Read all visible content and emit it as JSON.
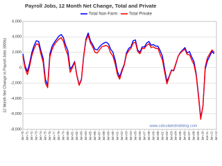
{
  "chart_data": {
    "type": "line",
    "title": "Payroll Jobs, 12 Month Net Change, Total and Private",
    "y_label": "12 Month Net Change in Payroll Jobs (000s)",
    "watermark": "www.calculatedriskblog.com",
    "grid": true,
    "legend": "top",
    "xlim": [
      1970,
      2013
    ],
    "ylim": [
      -8000,
      6000
    ],
    "yticks": [
      {
        "value": -8000,
        "label": "-8,000"
      },
      {
        "value": -6000,
        "label": "-6,000"
      },
      {
        "value": -4000,
        "label": "-4,000"
      },
      {
        "value": -2000,
        "label": "-2,000"
      },
      0,
      {
        "value": 2000,
        "label": "2,000"
      },
      {
        "value": 4000,
        "label": "4,000"
      },
      {
        "value": 6000,
        "label": "6,000"
      }
    ],
    "xticks": [
      {
        "value": 1970,
        "label": "Jan-70"
      },
      {
        "value": 1971,
        "label": "Jan-71"
      },
      {
        "value": 1972,
        "label": "Jan-72"
      },
      {
        "value": 1973,
        "label": "Jan-73"
      },
      {
        "value": 1974,
        "label": "Jan-74"
      },
      {
        "value": 1975,
        "label": "Jan-75"
      },
      {
        "value": 1976,
        "label": "Jan-76"
      },
      {
        "value": 1977,
        "label": "Jan-77"
      },
      {
        "value": 1978,
        "label": "Jan-78"
      },
      {
        "value": 1979,
        "label": "Jan-79"
      },
      {
        "value": 1980,
        "label": "Jan-80"
      },
      {
        "value": 1981,
        "label": "Jan-81"
      },
      {
        "value": 1982,
        "label": "Jan-82"
      },
      {
        "value": 1983,
        "label": "Jan-83"
      },
      {
        "value": 1984,
        "label": "Jan-84"
      },
      {
        "value": 1985,
        "label": "Jan-85"
      },
      {
        "value": 1986,
        "label": "Jan-86"
      },
      {
        "value": 1987,
        "label": "Jan-87"
      },
      {
        "value": 1988,
        "label": "Jan-88"
      },
      {
        "value": 1989,
        "label": "Jan-89"
      },
      {
        "value": 1990,
        "label": "Jan-90"
      },
      {
        "value": 1991,
        "label": "Jan-91"
      },
      {
        "value": 1992,
        "label": "Jan-92"
      },
      {
        "value": 1993,
        "label": "Jan-93"
      },
      {
        "value": 1994,
        "label": "Jan-94"
      },
      {
        "value": 1995,
        "label": "Jan-95"
      },
      {
        "value": 1996,
        "label": "Jan-96"
      },
      {
        "value": 1997,
        "label": "Jan-97"
      },
      {
        "value": 1998,
        "label": "Jan-98"
      },
      {
        "value": 1999,
        "label": "Jan-99"
      },
      {
        "value": 2000,
        "label": "Jan-00"
      },
      {
        "value": 2001,
        "label": "Jan-01"
      },
      {
        "value": 2002,
        "label": "Jan-02"
      },
      {
        "value": 2003,
        "label": "Jan-03"
      },
      {
        "value": 2004,
        "label": "Jan-04"
      },
      {
        "value": 2005,
        "label": "Jan-05"
      },
      {
        "value": 2006,
        "label": "Jan-06"
      },
      {
        "value": 2007,
        "label": "Jan-07"
      },
      {
        "value": 2008,
        "label": "Jan-08"
      },
      {
        "value": 2009,
        "label": "Jan-09"
      },
      {
        "value": 2010,
        "label": "Jan-10"
      },
      {
        "value": 2011,
        "label": "Jan-11"
      },
      {
        "value": 2012,
        "label": "Jan-12"
      },
      {
        "value": 2013,
        "label": "Jan-13"
      }
    ],
    "x": [
      1970,
      1970.5,
      1971,
      1971.5,
      1972,
      1972.5,
      1973,
      1973.5,
      1974,
      1974.5,
      1975,
      1975.5,
      1976,
      1976.5,
      1977,
      1977.5,
      1978,
      1978.5,
      1979,
      1979.5,
      1980,
      1980.5,
      1981,
      1981.5,
      1982,
      1982.5,
      1983,
      1983.5,
      1984,
      1984.5,
      1985,
      1985.5,
      1986,
      1986.5,
      1987,
      1987.5,
      1988,
      1988.5,
      1989,
      1989.5,
      1990,
      1990.5,
      1991,
      1991.5,
      1992,
      1992.5,
      1993,
      1993.5,
      1994,
      1994.5,
      1995,
      1995.5,
      1996,
      1996.5,
      1997,
      1997.5,
      1998,
      1998.5,
      1999,
      1999.5,
      2000,
      2000.5,
      2001,
      2001.5,
      2002,
      2002.5,
      2003,
      2003.5,
      2004,
      2004.5,
      2005,
      2005.5,
      2006,
      2006.5,
      2007,
      2007.5,
      2008,
      2008.5,
      2009,
      2009.5,
      2010,
      2010.5,
      2011,
      2011.5,
      2012,
      2012.5
    ],
    "series": [
      {
        "name": "Total Non-Farm",
        "color": "#0000ff",
        "values": [
          1800,
          200,
          -500,
          600,
          2000,
          2900,
          3500,
          3400,
          2200,
          1200,
          -1500,
          -2300,
          1800,
          2800,
          3300,
          3700,
          4100,
          4300,
          3900,
          2900,
          2200,
          -200,
          200,
          800,
          -1000,
          -2200,
          -1500,
          1500,
          3700,
          4500,
          3500,
          3000,
          2400,
          2300,
          2700,
          3000,
          3200,
          3300,
          3100,
          2400,
          2000,
          1000,
          -500,
          -1200,
          -300,
          400,
          1900,
          2500,
          2700,
          3500,
          3600,
          2300,
          2000,
          2700,
          2700,
          3200,
          3400,
          2900,
          3000,
          2800,
          2800,
          2200,
          1500,
          -200,
          -1800,
          -1100,
          -300,
          -400,
          500,
          1500,
          2000,
          2300,
          2600,
          1900,
          2100,
          1400,
          800,
          -800,
          -3500,
          -6500,
          -5000,
          -200,
          900,
          1500,
          2100,
          1800
        ]
      },
      {
        "name": "Total Private",
        "color": "#ff0000",
        "values": [
          1500,
          -100,
          -900,
          200,
          1600,
          2500,
          3100,
          3000,
          1800,
          700,
          -2000,
          -2600,
          1400,
          2400,
          3000,
          3400,
          3700,
          3900,
          3400,
          2400,
          1600,
          -600,
          0,
          700,
          -1100,
          -2300,
          -1600,
          1400,
          3500,
          4200,
          3200,
          2700,
          2000,
          1900,
          2300,
          2700,
          2800,
          2900,
          2700,
          1900,
          1500,
          500,
          -900,
          -1500,
          -500,
          300,
          1700,
          2200,
          2500,
          3200,
          3300,
          2100,
          1800,
          2500,
          2500,
          2900,
          3100,
          2600,
          2700,
          2500,
          2500,
          1700,
          1000,
          -600,
          -2100,
          -1200,
          -400,
          -300,
          600,
          1500,
          1900,
          2200,
          2400,
          1700,
          1700,
          1000,
          400,
          -1000,
          -3700,
          -6700,
          -5000,
          100,
          1300,
          1800,
          2300,
          2000
        ]
      }
    ]
  }
}
